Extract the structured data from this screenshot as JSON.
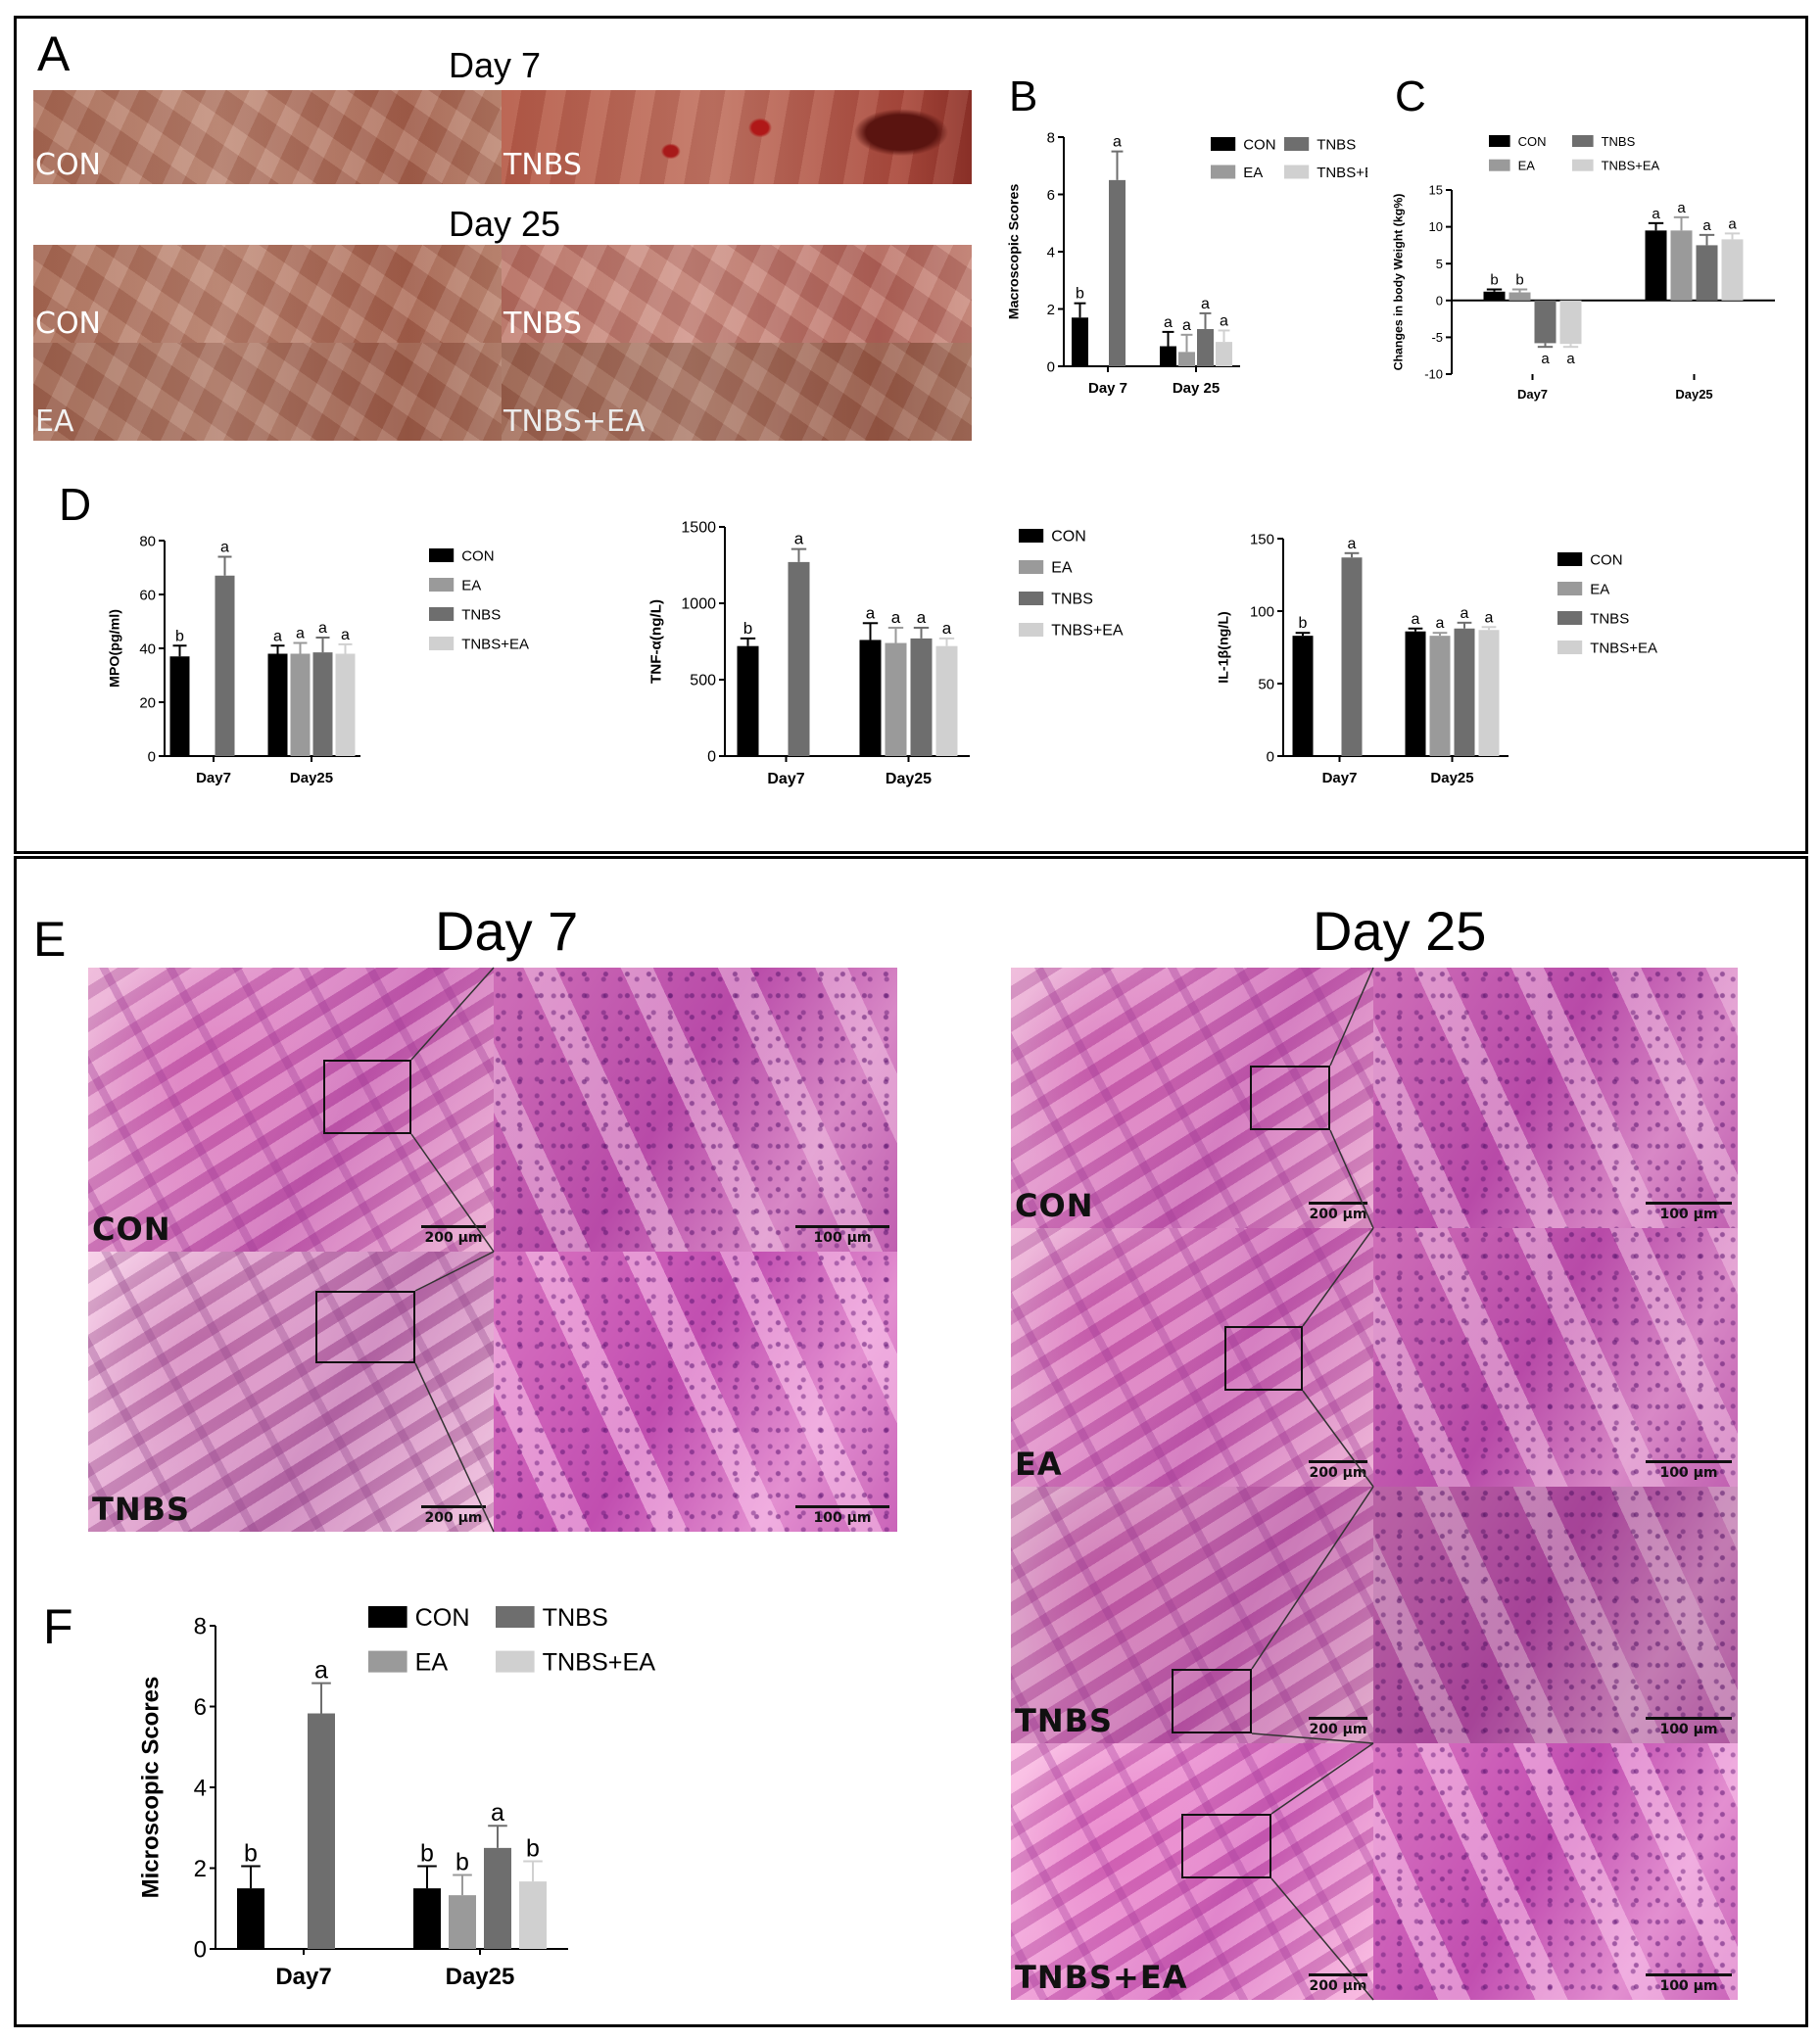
{
  "panel_letters": {
    "a": "A",
    "b": "B",
    "c": "C",
    "d": "D",
    "e": "E",
    "f": "F"
  },
  "panel_a": {
    "day7": "Day 7",
    "day25": "Day 25",
    "labels": {
      "con": "CON",
      "tnbs": "TNBS",
      "ea": "EA",
      "tnbs_ea": "TNBS+EA"
    }
  },
  "panel_e": {
    "day7": "Day 7",
    "day25": "Day 25",
    "labels": {
      "con": "CON",
      "tnbs": "TNBS",
      "ea": "EA",
      "tnbs_ea": "TNBS+EA"
    },
    "scale_200": "200 μm",
    "scale_100": "100 μm"
  },
  "colors": {
    "CON": "#000000",
    "EA": "#9a9a9a",
    "TNBS": "#6e6e6e",
    "TNBS+EA": "#d0d0d0"
  },
  "chart_data": [
    {
      "id": "B",
      "type": "bar",
      "categories": [
        "Day 7",
        "Day 25"
      ],
      "ylabel": "Macroscopic Scores",
      "ylim": [
        0,
        8
      ],
      "yticks": [
        0,
        2,
        4,
        6,
        8
      ],
      "legend": [
        "CON",
        "EA",
        "TNBS",
        "TNBS+EA"
      ],
      "legend_layout": "grid2",
      "legend_placement": "top-right",
      "series": [
        {
          "name": "CON",
          "values": [
            1.7,
            0.7
          ],
          "errors": [
            0.5,
            0.5
          ],
          "sig": [
            "b",
            "a"
          ]
        },
        {
          "name": "EA",
          "values": [
            null,
            0.5
          ],
          "errors": [
            null,
            0.6
          ],
          "sig": [
            null,
            "a"
          ]
        },
        {
          "name": "TNBS",
          "values": [
            6.5,
            1.3
          ],
          "errors": [
            1.0,
            0.55
          ],
          "sig": [
            "a",
            "a"
          ]
        },
        {
          "name": "TNBS+EA",
          "values": [
            null,
            0.85
          ],
          "errors": [
            null,
            0.4
          ],
          "sig": [
            null,
            "a"
          ]
        }
      ]
    },
    {
      "id": "C",
      "type": "bar",
      "categories": [
        "Day7",
        "Day25"
      ],
      "ylabel": "Changes in body Weight (kg%)",
      "ylim": [
        -10,
        15
      ],
      "yticks": [
        -10,
        -5,
        0,
        5,
        10,
        15
      ],
      "legend": [
        "CON",
        "EA",
        "TNBS",
        "TNBS+EA"
      ],
      "legend_layout": "grid2",
      "legend_placement": "top",
      "series": [
        {
          "name": "CON",
          "values": [
            1.2,
            9.5
          ],
          "errors": [
            0.3,
            1.0
          ],
          "sig": [
            "b",
            "a"
          ]
        },
        {
          "name": "EA",
          "values": [
            1.1,
            9.5
          ],
          "errors": [
            0.4,
            1.8
          ],
          "sig": [
            "b",
            "a"
          ]
        },
        {
          "name": "TNBS",
          "values": [
            -5.8,
            7.5
          ],
          "errors": [
            0.5,
            1.4
          ],
          "sig": [
            "a",
            "a"
          ]
        },
        {
          "name": "TNBS+EA",
          "values": [
            -5.9,
            8.3
          ],
          "errors": [
            0.4,
            0.8
          ],
          "sig": [
            "a",
            "a"
          ]
        }
      ]
    },
    {
      "id": "D1",
      "type": "bar",
      "categories": [
        "Day7",
        "Day25"
      ],
      "ylabel": "MPO(pg/ml)",
      "ylim": [
        0,
        80
      ],
      "yticks": [
        0,
        20,
        40,
        60,
        80
      ],
      "legend": [
        "CON",
        "EA",
        "TNBS",
        "TNBS+EA"
      ],
      "legend_layout": "column",
      "legend_placement": "right",
      "series": [
        {
          "name": "CON",
          "values": [
            37,
            38
          ],
          "errors": [
            4,
            3
          ],
          "sig": [
            "b",
            "a"
          ]
        },
        {
          "name": "EA",
          "values": [
            null,
            38
          ],
          "errors": [
            null,
            4
          ],
          "sig": [
            null,
            "a"
          ]
        },
        {
          "name": "TNBS",
          "values": [
            67,
            38.5
          ],
          "errors": [
            7,
            5.5
          ],
          "sig": [
            "a",
            "a"
          ]
        },
        {
          "name": "TNBS+EA",
          "values": [
            null,
            38
          ],
          "errors": [
            null,
            3.5
          ],
          "sig": [
            null,
            "a"
          ]
        }
      ]
    },
    {
      "id": "D2",
      "type": "bar",
      "categories": [
        "Day7",
        "Day25"
      ],
      "ylabel": "TNF-α(ng/L)",
      "ylim": [
        0,
        1500
      ],
      "yticks": [
        0,
        500,
        1000,
        1500
      ],
      "legend": [
        "CON",
        "EA",
        "TNBS",
        "TNBS+EA"
      ],
      "legend_layout": "column",
      "legend_placement": "right",
      "series": [
        {
          "name": "CON",
          "values": [
            720,
            760
          ],
          "errors": [
            50,
            110
          ],
          "sig": [
            "b",
            "a"
          ]
        },
        {
          "name": "EA",
          "values": [
            null,
            740
          ],
          "errors": [
            null,
            100
          ],
          "sig": [
            null,
            "a"
          ]
        },
        {
          "name": "TNBS",
          "values": [
            1270,
            770
          ],
          "errors": [
            85,
            70
          ],
          "sig": [
            "a",
            "a"
          ]
        },
        {
          "name": "TNBS+EA",
          "values": [
            null,
            720
          ],
          "errors": [
            null,
            50
          ],
          "sig": [
            null,
            "a"
          ]
        }
      ]
    },
    {
      "id": "D3",
      "type": "bar",
      "categories": [
        "Day7",
        "Day25"
      ],
      "ylabel": "IL-1β(ng/L)",
      "ylim": [
        0,
        150
      ],
      "yticks": [
        0,
        50,
        100,
        150
      ],
      "legend": [
        "CON",
        "EA",
        "TNBS",
        "TNBS+EA"
      ],
      "legend_layout": "column",
      "legend_placement": "right",
      "series": [
        {
          "name": "CON",
          "values": [
            83,
            86
          ],
          "errors": [
            2,
            2
          ],
          "sig": [
            "b",
            "a"
          ]
        },
        {
          "name": "EA",
          "values": [
            null,
            83
          ],
          "errors": [
            null,
            2
          ],
          "sig": [
            null,
            "a"
          ]
        },
        {
          "name": "TNBS",
          "values": [
            137,
            88
          ],
          "errors": [
            3,
            4
          ],
          "sig": [
            "a",
            "a"
          ]
        },
        {
          "name": "TNBS+EA",
          "values": [
            null,
            87
          ],
          "errors": [
            null,
            2
          ],
          "sig": [
            null,
            "a"
          ]
        }
      ]
    },
    {
      "id": "F",
      "type": "bar",
      "categories": [
        "Day7",
        "Day25"
      ],
      "ylabel": "Microscopic Scores",
      "ylim": [
        0,
        8
      ],
      "yticks": [
        0,
        2,
        4,
        6,
        8
      ],
      "legend": [
        "CON",
        "EA",
        "TNBS",
        "TNBS+EA"
      ],
      "legend_layout": "grid2",
      "legend_placement": "top",
      "series": [
        {
          "name": "CON",
          "values": [
            1.5,
            1.5
          ],
          "errors": [
            0.55,
            0.55
          ],
          "sig": [
            "b",
            "b"
          ]
        },
        {
          "name": "EA",
          "values": [
            null,
            1.33
          ],
          "errors": [
            null,
            0.5
          ],
          "sig": [
            null,
            "b"
          ]
        },
        {
          "name": "TNBS",
          "values": [
            5.83,
            2.5
          ],
          "errors": [
            0.75,
            0.55
          ],
          "sig": [
            "a",
            "a"
          ]
        },
        {
          "name": "TNBS+EA",
          "values": [
            null,
            1.67
          ],
          "errors": [
            null,
            0.5
          ],
          "sig": [
            null,
            "b"
          ]
        }
      ]
    }
  ]
}
